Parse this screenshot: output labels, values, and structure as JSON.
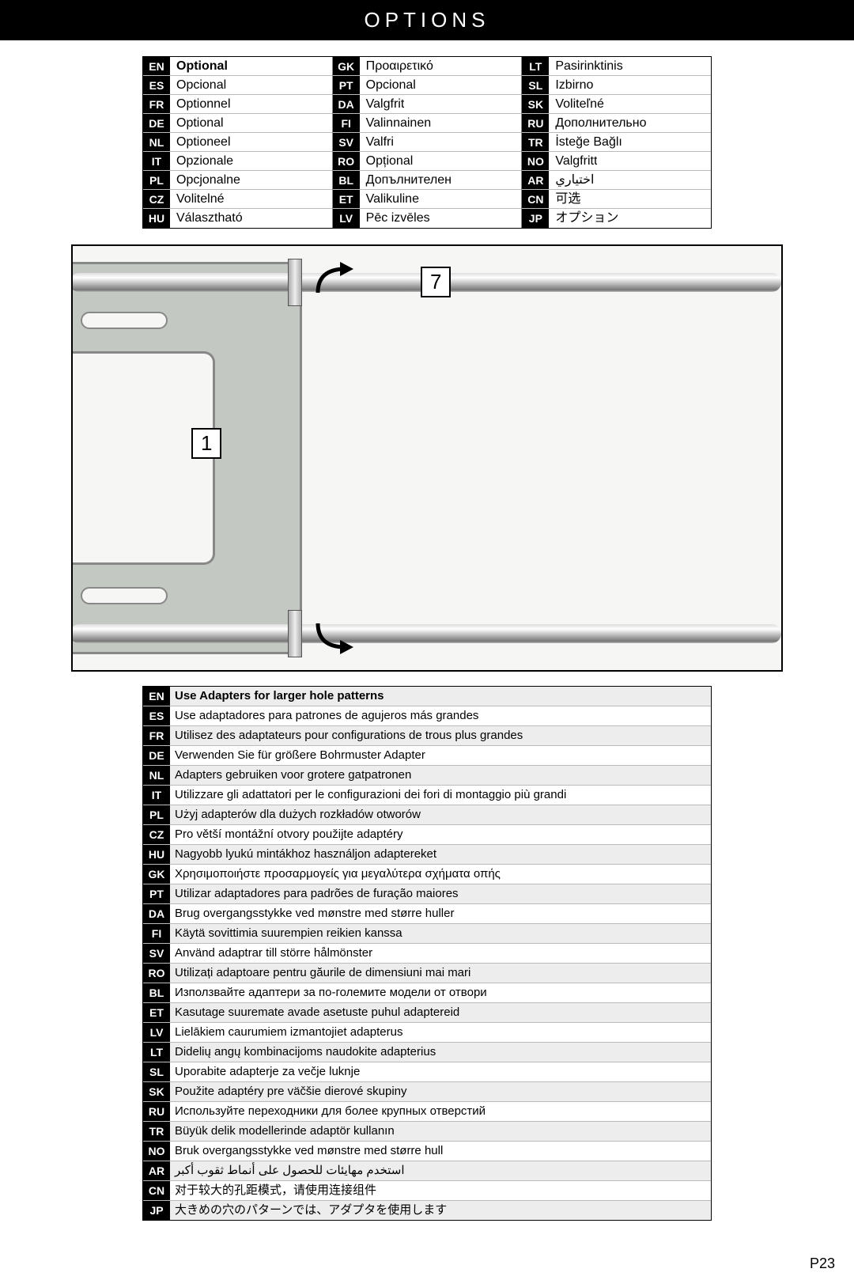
{
  "header": "OPTIONS",
  "page_number": "P23",
  "diagram": {
    "label1": "1",
    "label7": "7"
  },
  "trans_cols": [
    [
      {
        "code": "EN",
        "text": "Optional",
        "bold": true
      },
      {
        "code": "ES",
        "text": "Opcional"
      },
      {
        "code": "FR",
        "text": "Optionnel"
      },
      {
        "code": "DE",
        "text": "Optional"
      },
      {
        "code": "NL",
        "text": "Optioneel"
      },
      {
        "code": "IT",
        "text": "Opzionale"
      },
      {
        "code": "PL",
        "text": "Opcjonalne"
      },
      {
        "code": "CZ",
        "text": "Volitelné"
      },
      {
        "code": "HU",
        "text": "Választható"
      }
    ],
    [
      {
        "code": "GK",
        "text": "Προαιρετικό"
      },
      {
        "code": "PT",
        "text": "Opcional"
      },
      {
        "code": "DA",
        "text": "Valgfrit"
      },
      {
        "code": "FI",
        "text": "Valinnainen"
      },
      {
        "code": "SV",
        "text": "Valfri"
      },
      {
        "code": "RO",
        "text": "Opțional"
      },
      {
        "code": "BL",
        "text": "Допълнителен"
      },
      {
        "code": "ET",
        "text": "Valikuline"
      },
      {
        "code": "LV",
        "text": "Pēc izvēles"
      }
    ],
    [
      {
        "code": "LT",
        "text": "Pasirinktinis"
      },
      {
        "code": "SL",
        "text": "Izbirno"
      },
      {
        "code": "SK",
        "text": "Voliteľné"
      },
      {
        "code": "RU",
        "text": "Дополнительно"
      },
      {
        "code": "TR",
        "text": "İsteğe Bağlı"
      },
      {
        "code": "NO",
        "text": "Valgfritt"
      },
      {
        "code": "AR",
        "text": "اختياري"
      },
      {
        "code": "CN",
        "text": "可选"
      },
      {
        "code": "JP",
        "text": "オプション"
      }
    ]
  ],
  "long_rows": [
    {
      "code": "EN",
      "text": "Use Adapters for larger hole patterns",
      "bold": true
    },
    {
      "code": "ES",
      "text": "Use adaptadores para patrones de agujeros más grandes"
    },
    {
      "code": "FR",
      "text": "Utilisez des adaptateurs pour configurations de trous plus grandes"
    },
    {
      "code": "DE",
      "text": "Verwenden Sie für größere Bohrmuster Adapter"
    },
    {
      "code": "NL",
      "text": "Adapters gebruiken voor grotere gatpatronen"
    },
    {
      "code": "IT",
      "text": "Utilizzare gli adattatori per le configurazioni dei fori di montaggio più grandi"
    },
    {
      "code": "PL",
      "text": "Użyj adapterów dla dużych rozkładów otworów"
    },
    {
      "code": "CZ",
      "text": "Pro větší montážní otvory použijte adaptéry"
    },
    {
      "code": "HU",
      "text": "Nagyobb lyukú mintákhoz használjon adaptereket"
    },
    {
      "code": "GK",
      "text": "Χρησιμοποιήστε προσαρμογείς για μεγαλύτερα σχήματα οπής"
    },
    {
      "code": "PT",
      "text": "Utilizar adaptadores para padrões de furação maiores"
    },
    {
      "code": "DA",
      "text": "Brug overgangsstykke ved mønstre med større huller"
    },
    {
      "code": "FI",
      "text": "Käytä sovittimia suurempien reikien kanssa"
    },
    {
      "code": "SV",
      "text": "Använd adaptrar till större hålmönster"
    },
    {
      "code": "RO",
      "text": "Utilizați adaptoare pentru găurile de dimensiuni mai mari"
    },
    {
      "code": "BL",
      "text": "Използвайте адаптери за по-големите модели от отвори"
    },
    {
      "code": "ET",
      "text": "Kasutage suuremate avade asetuste puhul adaptereid"
    },
    {
      "code": "LV",
      "text": "Lielākiem caurumiem izmantojiet adapterus"
    },
    {
      "code": "LT",
      "text": "Didelių angų kombinacijoms naudokite adapterius"
    },
    {
      "code": "SL",
      "text": "Uporabite adapterje za večje luknje"
    },
    {
      "code": "SK",
      "text": "Použite adaptéry pre väčšie dierové skupiny"
    },
    {
      "code": "RU",
      "text": "Используйте переходники для более крупных отверстий"
    },
    {
      "code": "TR",
      "text": "Büyük delik modellerinde adaptör kullanın"
    },
    {
      "code": "NO",
      "text": "Bruk overgangsstykke ved mønstre med større hull"
    },
    {
      "code": "AR",
      "text": "استخدم مهايئات للحصول على أنماط ثقوب أكبر"
    },
    {
      "code": "CN",
      "text": "对于较大的孔距模式，请使用连接组件"
    },
    {
      "code": "JP",
      "text": "大きめの穴のパターンでは、アダプタを使用します"
    }
  ]
}
